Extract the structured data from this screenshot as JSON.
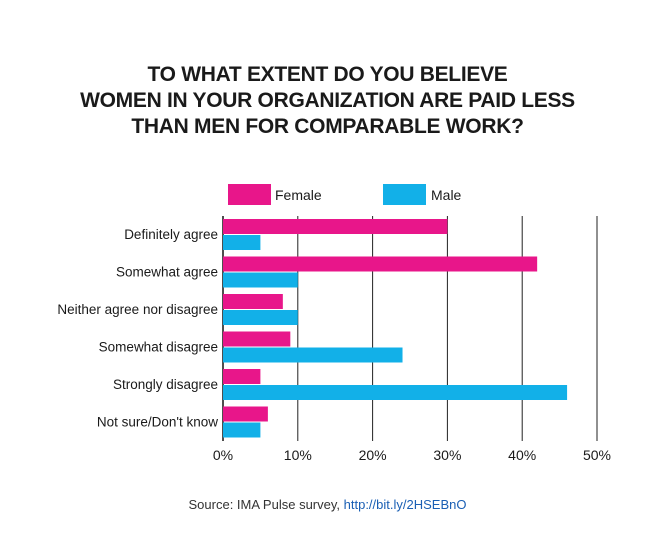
{
  "title_lines": [
    "TO WHAT EXTENT DO YOU BELIEVE",
    "WOMEN IN YOUR ORGANIZATION ARE PAID LESS",
    "THAN MEN FOR COMPARABLE WORK?"
  ],
  "source": {
    "text": "Source: IMA Pulse survey,",
    "link": "http://bit.ly/2HSEBnO"
  },
  "colors": {
    "female": "#e8168a",
    "male": "#12b0e8",
    "grid": "#222222",
    "text": "#1a1a1a"
  },
  "chart_data": {
    "type": "bar",
    "orientation": "horizontal",
    "categories": [
      "Definitely agree",
      "Somewhat agree",
      "Neither agree nor disagree",
      "Somewhat disagree",
      "Strongly disagree",
      "Not sure/Don't know"
    ],
    "series": [
      {
        "name": "Female",
        "values": [
          30,
          42,
          8,
          9,
          5,
          6
        ]
      },
      {
        "name": "Male",
        "values": [
          5,
          10,
          10,
          24,
          46,
          5
        ]
      }
    ],
    "xlim": [
      0,
      50
    ],
    "xticks": [
      "0%",
      "10%",
      "20%",
      "30%",
      "40%",
      "50%"
    ],
    "legend": "top",
    "grid": true
  }
}
